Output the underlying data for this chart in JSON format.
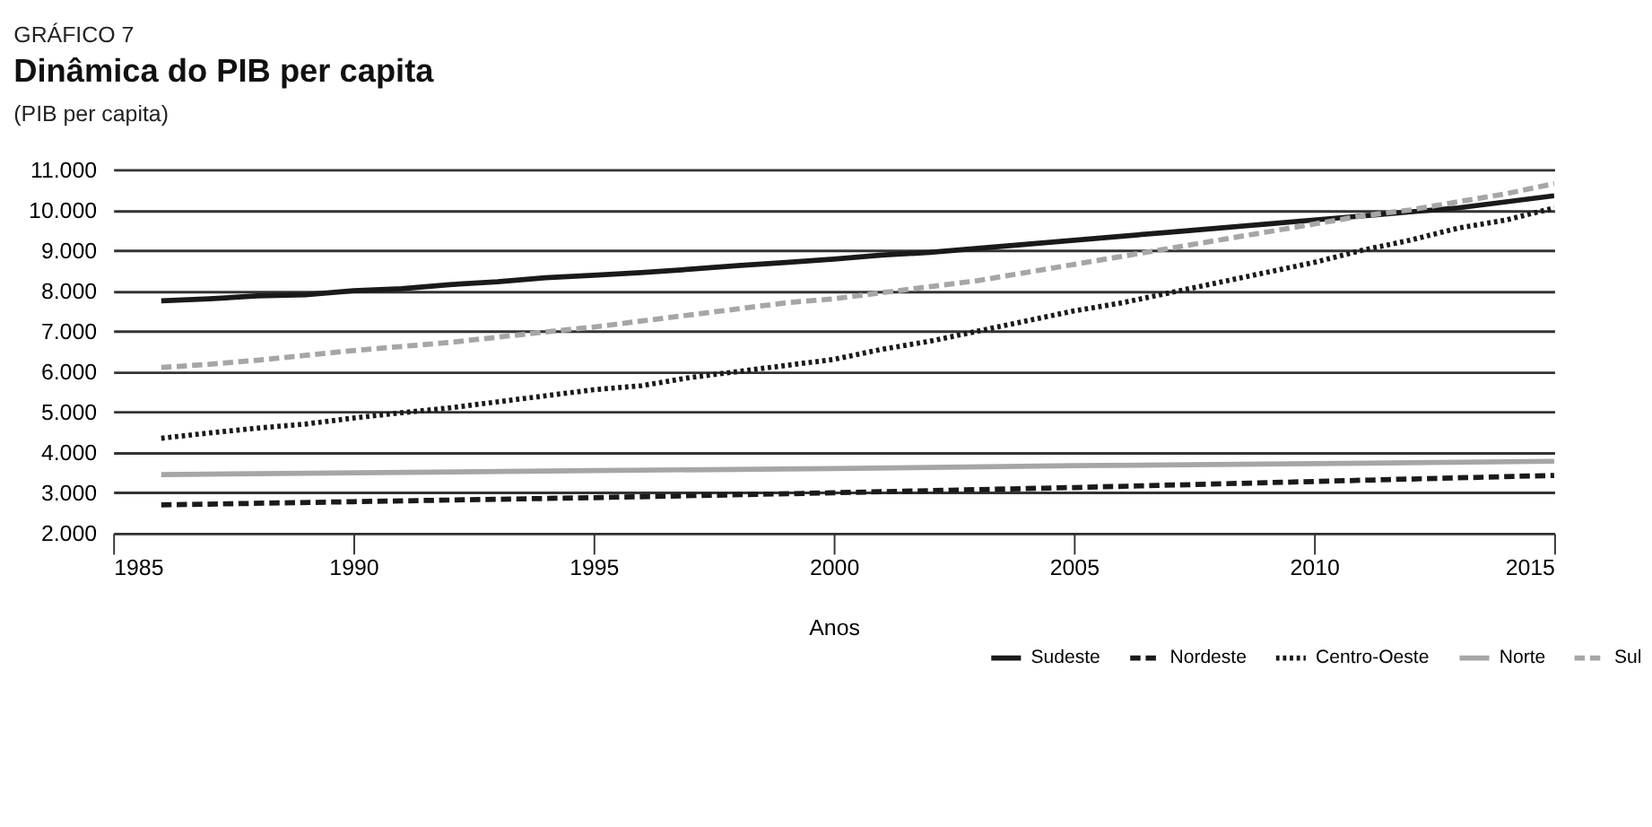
{
  "chart_data": {
    "type": "line",
    "title": "Dinâmica do PIB per capita",
    "subtitle": "(PIB per capita)",
    "annotations": [
      "GRÁFICO 7"
    ],
    "xlabel": "Anos",
    "xlim": [
      1985,
      2015
    ],
    "xticks": [
      1985,
      1990,
      1995,
      2000,
      2005,
      2010,
      2015
    ],
    "ylim": [
      2000,
      11000
    ],
    "yticks": [
      {
        "value": 2000,
        "label": "2.000"
      },
      {
        "value": 3000,
        "label": "3.000"
      },
      {
        "value": 4000,
        "label": "4.000"
      },
      {
        "value": 5000,
        "label": "5.000"
      },
      {
        "value": 6000,
        "label": "6.000"
      },
      {
        "value": 7000,
        "label": "7.000"
      },
      {
        "value": 8000,
        "label": "8.000"
      },
      {
        "value": 9000,
        "label": "9.000"
      },
      {
        "value": 10000,
        "label": "10.000"
      },
      {
        "value": 11000,
        "label": "11.000"
      }
    ],
    "grid": "y",
    "legend": "bottom right",
    "series": [
      {
        "name": "Sudeste",
        "color": "#1a1a1a",
        "line_style": "solid",
        "x": [
          1986,
          1987,
          1988,
          1989,
          1990,
          1991,
          1992,
          1993,
          1994,
          1995,
          1996,
          1997,
          1998,
          1999,
          2000,
          2001,
          2002,
          2003,
          2004,
          2005,
          2006,
          2007,
          2008,
          2009,
          2010,
          2011,
          2012,
          2013,
          2014,
          2015
        ],
        "values": [
          7750,
          7800,
          7870,
          7900,
          8000,
          8050,
          8150,
          8220,
          8320,
          8380,
          8450,
          8530,
          8620,
          8700,
          8780,
          8880,
          8950,
          9050,
          9150,
          9250,
          9350,
          9450,
          9550,
          9650,
          9750,
          9850,
          9950,
          10050,
          10200,
          10350
        ]
      },
      {
        "name": "Nordeste",
        "color": "#1a1a1a",
        "line_style": "dashed",
        "x": [
          1986,
          1990,
          1995,
          2000,
          2005,
          2010,
          2015
        ],
        "values": [
          2700,
          2780,
          2880,
          3000,
          3130,
          3280,
          3430
        ]
      },
      {
        "name": "Centro-Oeste",
        "color": "#1a1a1a",
        "line_style": "dotted",
        "x": [
          1986,
          1987,
          1988,
          1989,
          1990,
          1991,
          1992,
          1993,
          1994,
          1995,
          1996,
          1997,
          1998,
          1999,
          2000,
          2001,
          2002,
          2003,
          2004,
          2005,
          2006,
          2007,
          2008,
          2009,
          2010,
          2011,
          2012,
          2013,
          2014,
          2015
        ],
        "values": [
          4350,
          4480,
          4600,
          4700,
          4850,
          4980,
          5100,
          5250,
          5400,
          5550,
          5650,
          5850,
          6000,
          6150,
          6300,
          6550,
          6750,
          7000,
          7250,
          7500,
          7700,
          7950,
          8200,
          8450,
          8700,
          9000,
          9250,
          9550,
          9750,
          10050
        ]
      },
      {
        "name": "Norte",
        "color": "#a6a6a6",
        "line_style": "solid",
        "x": [
          1986,
          1995,
          2000,
          2005,
          2010,
          2015
        ],
        "values": [
          3450,
          3550,
          3600,
          3670,
          3720,
          3780
        ]
      },
      {
        "name": "Sul",
        "color": "#a6a6a6",
        "line_style": "dashed",
        "x": [
          1986,
          1987,
          1988,
          1989,
          1990,
          1991,
          1992,
          1993,
          1994,
          1995,
          1996,
          1997,
          1998,
          1999,
          2000,
          2001,
          2002,
          2003,
          2004,
          2005,
          2006,
          2007,
          2008,
          2009,
          2010,
          2011,
          2012,
          2013,
          2014,
          2015
        ],
        "values": [
          6100,
          6180,
          6280,
          6400,
          6520,
          6620,
          6720,
          6850,
          6980,
          7100,
          7250,
          7400,
          7550,
          7700,
          7800,
          7950,
          8100,
          8250,
          8450,
          8650,
          8850,
          9050,
          9250,
          9450,
          9650,
          9850,
          10000,
          10200,
          10400,
          10650
        ]
      }
    ]
  }
}
